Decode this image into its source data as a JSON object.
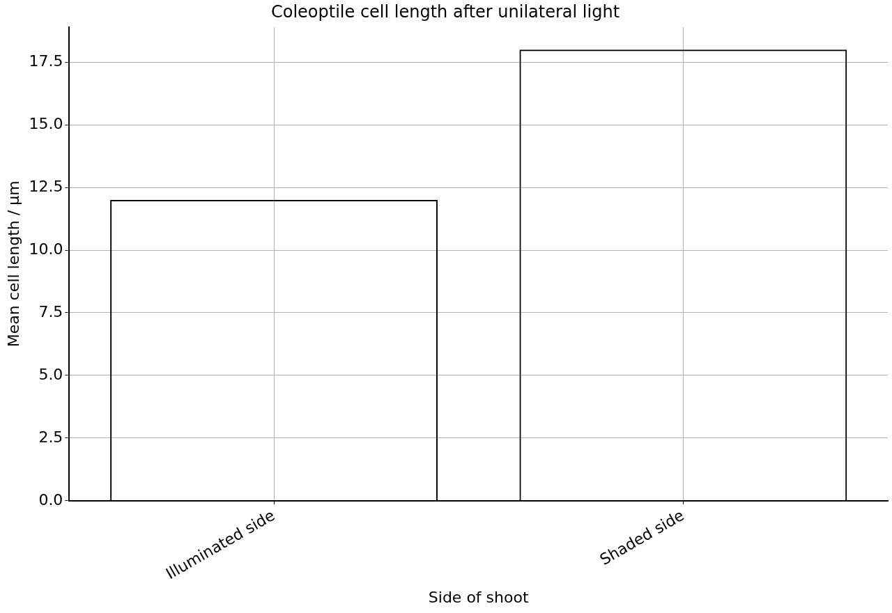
{
  "chart_data": {
    "type": "bar",
    "title": "Coleoptile cell length after unilateral light",
    "xlabel": "Side of shoot",
    "ylabel": "Mean cell length / µm",
    "categories": [
      "Illuminated side",
      "Shaded side"
    ],
    "values": [
      12,
      18
    ],
    "color": "#000000",
    "ylim": [
      0,
      18.9
    ],
    "yticks": [
      {
        "value": 0,
        "label": "0.0"
      },
      {
        "value": 2.5,
        "label": "2.5"
      },
      {
        "value": 5,
        "label": "5.0"
      },
      {
        "value": 7.5,
        "label": "7.5"
      },
      {
        "value": 10,
        "label": "10.0"
      },
      {
        "value": 12.5,
        "label": "12.5"
      },
      {
        "value": 15,
        "label": "15.0"
      },
      {
        "value": 17.5,
        "label": "17.5"
      }
    ],
    "grid": true
  }
}
